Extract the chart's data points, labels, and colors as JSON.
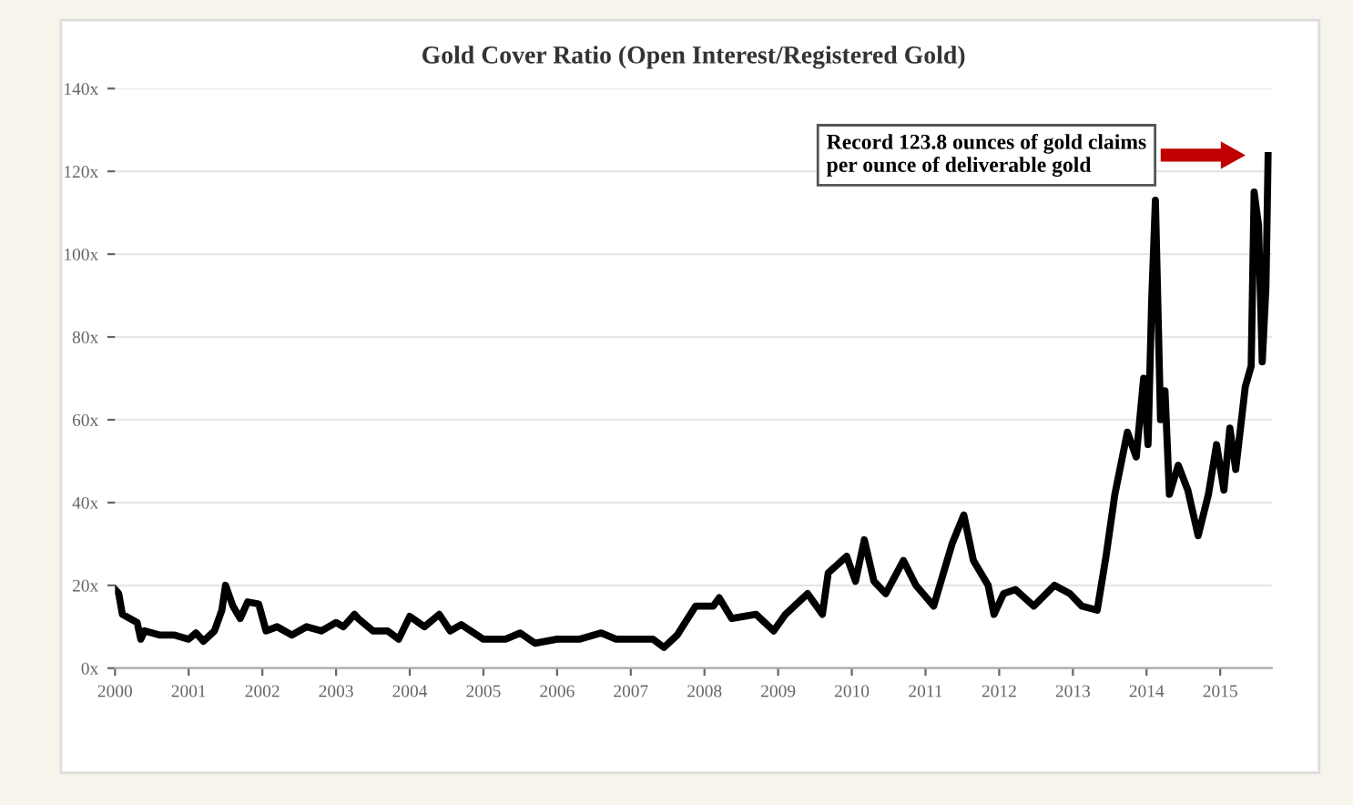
{
  "chart_data": {
    "type": "line",
    "title": "Gold Cover Ratio (Open Interest/Registered Gold)",
    "x": [
      2000.0,
      2000.05,
      2000.1,
      2000.2,
      2000.3,
      2000.35,
      2000.4,
      2000.6,
      2000.8,
      2001.0,
      2001.1,
      2001.2,
      2001.35,
      2001.45,
      2001.5,
      2001.6,
      2001.7,
      2001.8,
      2001.95,
      2002.05,
      2002.2,
      2002.4,
      2002.6,
      2002.8,
      2003.0,
      2003.1,
      2003.25,
      2003.3,
      2003.5,
      2003.7,
      2003.85,
      2004.0,
      2004.2,
      2004.4,
      2004.55,
      2004.7,
      2005.0,
      2005.3,
      2005.5,
      2005.7,
      2006.0,
      2006.3,
      2006.6,
      2006.8,
      2007.0,
      2007.3,
      2007.45,
      2007.63,
      2007.88,
      2008.12,
      2008.2,
      2008.37,
      2008.7,
      2008.94,
      2009.1,
      2009.4,
      2009.6,
      2009.68,
      2009.93,
      2010.05,
      2010.17,
      2010.3,
      2010.46,
      2010.7,
      2010.87,
      2011.11,
      2011.36,
      2011.52,
      2011.65,
      2011.85,
      2011.93,
      2012.06,
      2012.22,
      2012.47,
      2012.75,
      2012.96,
      2013.12,
      2013.33,
      2013.45,
      2013.57,
      2013.74,
      2013.86,
      2013.96,
      2014.02,
      2014.07,
      2014.12,
      2014.19,
      2014.25,
      2014.31,
      2014.43,
      2014.56,
      2014.7,
      2014.84,
      2014.95,
      2015.05,
      2015.13,
      2015.21,
      2015.34,
      2015.42,
      2015.46,
      2015.52,
      2015.57,
      2015.62,
      2015.65
    ],
    "series": [
      {
        "color": "#000000",
        "values": [
          19,
          18,
          13,
          12,
          11,
          7,
          9,
          8,
          8,
          7,
          8.5,
          6.5,
          9,
          14,
          20,
          15,
          12,
          16,
          15.5,
          9,
          10,
          8,
          10,
          9,
          11,
          10,
          13,
          12,
          9,
          9,
          7,
          12.5,
          10,
          13,
          9,
          10.5,
          7,
          7,
          8.5,
          6,
          7,
          7,
          8.5,
          7,
          7,
          7,
          5,
          8,
          15,
          15,
          17,
          12,
          13,
          9,
          13,
          18,
          13,
          23,
          27,
          21,
          31,
          21,
          18,
          26,
          20,
          15,
          30,
          37,
          26,
          20,
          13,
          18,
          19,
          15,
          20,
          18,
          15,
          14,
          27,
          42,
          57,
          51,
          70,
          54,
          89,
          113,
          60,
          67,
          42,
          49,
          43,
          32,
          42,
          54,
          43,
          58,
          48,
          68,
          73,
          115,
          107,
          74,
          92,
          123.8
        ]
      }
    ],
    "xlim": [
      2000,
      2015.7
    ],
    "xticks": [
      2000,
      2001,
      2002,
      2003,
      2004,
      2005,
      2006,
      2007,
      2008,
      2009,
      2010,
      2011,
      2012,
      2013,
      2014,
      2015
    ],
    "ylim": [
      0,
      140
    ],
    "yticks": [
      {
        "value": 0,
        "label": "0x"
      },
      {
        "value": 20,
        "label": "20x"
      },
      {
        "value": 40,
        "label": "40x"
      },
      {
        "value": 60,
        "label": "60x"
      },
      {
        "value": 80,
        "label": "80x"
      },
      {
        "value": 100,
        "label": "100x"
      },
      {
        "value": 120,
        "label": "120x"
      },
      {
        "value": 140,
        "label": "140x"
      }
    ],
    "grid": "y",
    "legend": false,
    "marker": "none",
    "line_style": "solid",
    "annotations": [
      "Record 123.8 ounces of gold claims\nper ounce of deliverable gold"
    ]
  }
}
